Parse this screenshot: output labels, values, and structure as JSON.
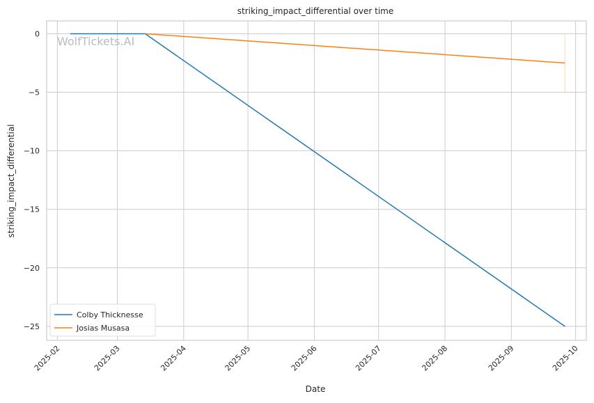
{
  "chart_data": {
    "type": "line",
    "title": "striking_impact_differential over time",
    "xlabel": "Date",
    "ylabel": "striking_impact_differential",
    "watermark": "WolfTickets.AI",
    "xlim": [
      "2025-01-27",
      "2025-10-06"
    ],
    "ylim": [
      -26.2,
      1.1
    ],
    "x_ticks": [
      "2025-02",
      "2025-03",
      "2025-04",
      "2025-05",
      "2025-06",
      "2025-07",
      "2025-08",
      "2025-09",
      "2025-10"
    ],
    "y_ticks": [
      0,
      -5,
      -10,
      -15,
      -20,
      -25
    ],
    "grid": true,
    "legend_position": "lower-left",
    "series": [
      {
        "name": "Colby Thicknesse",
        "color": "#1f77b4",
        "x": [
          "2025-02-07",
          "2025-03-14",
          "2025-09-26"
        ],
        "y": [
          0,
          0,
          -25
        ]
      },
      {
        "name": "Josias Musasa",
        "color": "#ff7f0e",
        "x": [
          "2025-03-14",
          "2025-09-26"
        ],
        "y": [
          0,
          -2.5
        ],
        "band": {
          "x": "2025-09-26",
          "y": [
            0,
            -5
          ]
        }
      }
    ]
  }
}
